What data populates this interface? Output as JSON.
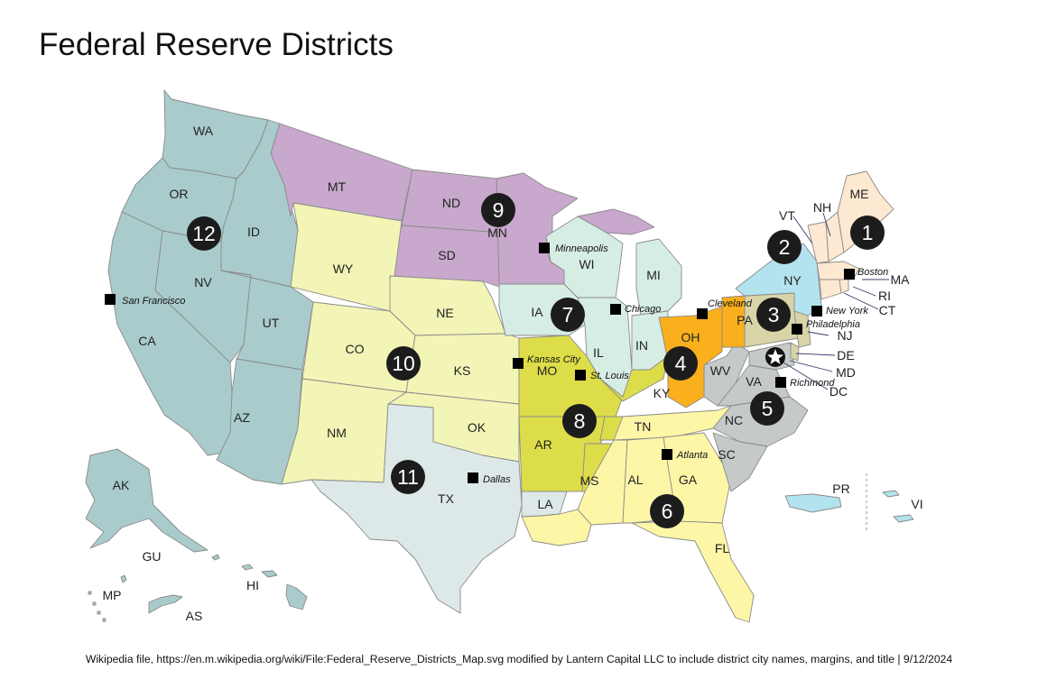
{
  "title": "Federal Reserve Districts",
  "credit": "Wikipedia file, https://en.m.wikipedia.org/wiki/File:Federal_Reserve_Districts_Map.svg modified by Lantern Capital LLC to include district city names, margins, and title | 9/12/2024",
  "colors": {
    "d1": "#fde8d2",
    "d2": "#b3e3ef",
    "d3": "#d8d4a8",
    "d4": "#f9b01c",
    "d5": "#c5cac8",
    "d6": "#fdf6a7",
    "d7": "#d6ede4",
    "d8": "#dddd4a",
    "d9": "#c8a8cc",
    "d10": "#f2f5b5",
    "d11": "#dde9e8",
    "d12": "#a9cbcb",
    "marker": "#000000",
    "badge": "#1c1c1c"
  },
  "districts": [
    "1",
    "2",
    "3",
    "4",
    "5",
    "6",
    "7",
    "8",
    "9",
    "10",
    "11",
    "12"
  ],
  "states": {
    "WA": "WA",
    "OR": "OR",
    "CA": "CA",
    "ID": "ID",
    "NV": "NV",
    "UT": "UT",
    "AZ": "AZ",
    "MT": "MT",
    "WY": "WY",
    "CO": "CO",
    "NM": "NM",
    "ND": "ND",
    "SD": "SD",
    "NE": "NE",
    "KS": "KS",
    "OK": "OK",
    "TX": "TX",
    "MN": "MN",
    "IA": "IA",
    "MO": "MO",
    "AR": "AR",
    "LA": "LA",
    "WI": "WI",
    "IL": "IL",
    "MI": "MI",
    "IN": "IN",
    "OH": "OH",
    "KY": "KY",
    "TN": "TN",
    "MS": "MS",
    "AL": "AL",
    "GA": "GA",
    "FL": "FL",
    "SC": "SC",
    "NC": "NC",
    "VA": "VA",
    "WV": "WV",
    "MD": "MD",
    "DE": "DE",
    "DC": "DC",
    "PA": "PA",
    "NJ": "NJ",
    "NY": "NY",
    "CT": "CT",
    "RI": "RI",
    "MA": "MA",
    "VT": "VT",
    "NH": "NH",
    "ME": "ME",
    "AK": "AK",
    "HI": "HI",
    "GU": "GU",
    "MP": "MP",
    "AS": "AS",
    "PR": "PR",
    "VI": "VI"
  },
  "cities": {
    "san_francisco": "San Francisco",
    "minneapolis": "Minneapolis",
    "kansas_city": "Kansas City",
    "st_louis": "St. Louis",
    "chicago": "Chicago",
    "cleveland": "Cleveland",
    "new_york": "New York",
    "philadelphia": "Philadelphia",
    "boston": "Boston",
    "richmond": "Richmond",
    "atlanta": "Atlanta",
    "dallas": "Dallas"
  },
  "icons": {
    "city_marker": "black-square",
    "district_badge": "black-circle",
    "capital": "star"
  }
}
